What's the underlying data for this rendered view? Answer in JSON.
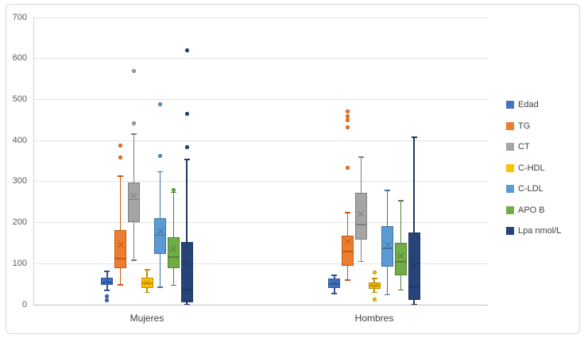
{
  "chart": {
    "background": "#FFFFFF",
    "frame_border_color": "#D9D9D9",
    "gridline_color": "#E3E3E3",
    "axis_line_color": "#C0C0C0",
    "tick_label_color": "#595959",
    "category_label_color": "#404040",
    "legend_text_color": "#404040"
  },
  "chart_data": {
    "type": "boxplot",
    "title": "",
    "categories": [
      "Mujeres",
      "Hombres"
    ],
    "y_axis": {
      "min": 0,
      "max": 700,
      "tick_step": 100,
      "tick_labels": [
        "0",
        "100",
        "200",
        "300",
        "400",
        "500",
        "600",
        "700"
      ]
    },
    "grid": true,
    "legend_position": "right",
    "series": [
      {
        "name": "Edad",
        "color": "#4472C4",
        "border": "#2E5596",
        "boxes": [
          {
            "low": 35,
            "q1": 49,
            "median": 54,
            "mean": 58,
            "q3": 65,
            "high": 81,
            "outliers": [
              21,
              10
            ]
          },
          {
            "low": 27,
            "q1": 40,
            "median": 50,
            "mean": 53,
            "q3": 63,
            "high": 72,
            "outliers": []
          }
        ]
      },
      {
        "name": "TG",
        "color": "#ED7D31",
        "border": "#C55A11",
        "boxes": [
          {
            "low": 48,
            "q1": 89,
            "median": 112,
            "mean": 145,
            "q3": 182,
            "high": 313,
            "outliers": [
              358,
              387
            ]
          },
          {
            "low": 60,
            "q1": 95,
            "median": 130,
            "mean": 153,
            "q3": 169,
            "high": 224,
            "outliers": [
              333,
              432,
              450,
              460,
              470
            ]
          }
        ]
      },
      {
        "name": "CT",
        "color": "#A5A5A5",
        "border": "#7F7F7F",
        "boxes": [
          {
            "low": 108,
            "q1": 202,
            "median": 256,
            "mean": 266,
            "q3": 298,
            "high": 416,
            "outliers": [
              442,
              570
            ]
          },
          {
            "low": 105,
            "q1": 158,
            "median": 195,
            "mean": 222,
            "q3": 273,
            "high": 360,
            "outliers": []
          }
        ]
      },
      {
        "name": "C-HDL",
        "color": "#FFC000",
        "border": "#BF8F00",
        "boxes": [
          {
            "low": 30,
            "q1": 40,
            "median": 52,
            "mean": 53,
            "q3": 65,
            "high": 85,
            "outliers": []
          },
          {
            "low": 30,
            "q1": 38,
            "median": 46,
            "mean": 45,
            "q3": 55,
            "high": 64,
            "outliers": [
              78,
              12
            ]
          }
        ]
      },
      {
        "name": "C-LDL",
        "color": "#5B9BD5",
        "border": "#41719C",
        "boxes": [
          {
            "low": 43,
            "q1": 124,
            "median": 169,
            "mean": 179,
            "q3": 211,
            "high": 324,
            "outliers": [
              363,
              489
            ]
          },
          {
            "low": 24,
            "q1": 92,
            "median": 137,
            "mean": 145,
            "q3": 192,
            "high": 279,
            "outliers": []
          }
        ]
      },
      {
        "name": "APO B",
        "color": "#70AD47",
        "border": "#548235",
        "boxes": [
          {
            "low": 47,
            "q1": 89,
            "median": 116,
            "mean": 137,
            "q3": 165,
            "high": 274,
            "outliers": [
              279
            ]
          },
          {
            "low": 36,
            "q1": 71,
            "median": 104,
            "mean": 118,
            "q3": 150,
            "high": 253,
            "outliers": []
          }
        ]
      },
      {
        "name": "Lpa nmol/L",
        "color": "#264478",
        "border": "#203864",
        "boxes": [
          {
            "low": 1,
            "q1": 5,
            "median": 37,
            "mean": 99,
            "q3": 153,
            "high": 354,
            "outliers": [
              384,
              465,
              620
            ]
          },
          {
            "low": 1,
            "q1": 11,
            "median": 43,
            "mean": 95,
            "q3": 176,
            "high": 408,
            "outliers": []
          }
        ]
      }
    ]
  }
}
